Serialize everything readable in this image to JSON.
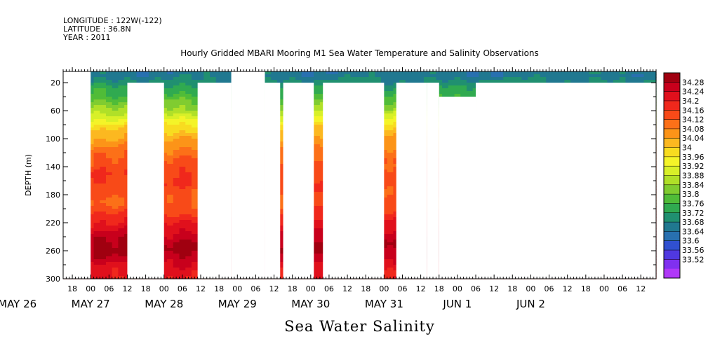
{
  "header": {
    "longitude": "LONGITUDE : 122W(-122)",
    "latitude": "LATITUDE : 36.8N",
    "year": "YEAR : 2011"
  },
  "chart_data": {
    "type": "heatmap",
    "title": "Hourly Gridded MBARI Mooring M1 Sea Water Temperature and Salinity Observations",
    "bottom_title": "Sea Water Salinity",
    "ylabel": "DEPTH (m)",
    "y_ticks": [
      20,
      60,
      100,
      140,
      180,
      220,
      260,
      300
    ],
    "ylim": [
      300,
      4
    ],
    "x_ticks_hours": [
      "18",
      "00",
      "06",
      "12",
      "18",
      "00",
      "06",
      "12",
      "18",
      "00",
      "06",
      "12",
      "18",
      "00",
      "06",
      "12",
      "18",
      "00",
      "06",
      "12",
      "18",
      "00",
      "06",
      "12",
      "18",
      "00",
      "06",
      "12",
      "18",
      "00",
      "06",
      "12"
    ],
    "x_hour_values": [
      -6,
      0,
      6,
      12,
      18,
      24,
      30,
      36,
      42,
      48,
      54,
      60,
      66,
      72,
      78,
      84,
      90,
      96,
      102,
      108,
      114,
      120,
      126,
      132,
      138,
      144,
      150,
      156,
      162,
      168,
      174,
      180
    ],
    "x_day_labels": [
      "MAY 26",
      "MAY 27",
      "MAY 28",
      "MAY 29",
      "MAY 30",
      "MAY 31",
      "JUN  1",
      "JUN  2"
    ],
    "x_day_values": [
      -24,
      0,
      24,
      48,
      72,
      96,
      120,
      144
    ],
    "xlim": [
      -9,
      185
    ],
    "colorbar": {
      "labels": [
        "34.28",
        "34.24",
        "34.2",
        "34.16",
        "34.12",
        "34.08",
        "34.04",
        "34",
        "33.96",
        "33.92",
        "33.88",
        "33.84",
        "33.8",
        "33.76",
        "33.72",
        "33.68",
        "33.64",
        "33.6",
        "33.56",
        "33.52"
      ],
      "colors": [
        "#a00010",
        "#c8001c",
        "#e0101c",
        "#f0281c",
        "#f84a18",
        "#fc7018",
        "#fc9418",
        "#fcb820",
        "#f8dc20",
        "#f4f428",
        "#d8f028",
        "#b0e028",
        "#80cc30",
        "#50bc38",
        "#30aa50",
        "#209070",
        "#207890",
        "#2870b0",
        "#3050d0",
        "#5038e0",
        "#8030f0",
        "#b038f8"
      ]
    },
    "profile": {
      "depth": [
        4,
        10,
        20,
        30,
        40,
        50,
        60,
        70,
        80,
        90,
        100,
        110,
        120,
        130,
        140,
        150,
        160,
        170,
        180,
        190,
        200,
        210,
        220,
        230,
        240,
        250,
        260,
        270,
        280,
        290,
        300
      ],
      "salinity": [
        33.7,
        33.7,
        33.73,
        33.77,
        33.8,
        33.84,
        33.88,
        33.93,
        33.98,
        34.02,
        34.05,
        34.07,
        34.1,
        34.12,
        34.13,
        34.15,
        34.15,
        34.14,
        34.13,
        34.12,
        34.14,
        34.17,
        34.2,
        34.22,
        34.25,
        34.27,
        34.27,
        34.25,
        34.22,
        34.2,
        34.19
      ]
    },
    "gaps": [
      {
        "from": -9,
        "to": 0,
        "below": 4
      },
      {
        "from": 12,
        "to": 24,
        "below": 20
      },
      {
        "from": 12,
        "to": 18,
        "below": 60
      },
      {
        "from": 19,
        "to": 21,
        "below": 60
      },
      {
        "from": 35,
        "to": 46,
        "below": 20
      },
      {
        "from": 46,
        "to": 57,
        "below": 4
      },
      {
        "from": 57,
        "to": 62,
        "below": 20
      },
      {
        "from": 63,
        "to": 73,
        "below": 20
      },
      {
        "from": 63,
        "to": 66,
        "below": 60
      },
      {
        "from": 68,
        "to": 73,
        "below": 60
      },
      {
        "from": 76,
        "to": 88,
        "below": 20
      },
      {
        "from": 79,
        "to": 86,
        "below": 60
      },
      {
        "from": 88,
        "to": 96,
        "below": 20
      },
      {
        "from": 89,
        "to": 92,
        "below": 60
      },
      {
        "from": 93,
        "to": 95,
        "below": 60
      },
      {
        "from": 100,
        "to": 110,
        "below": 20
      },
      {
        "from": 101,
        "to": 108,
        "below": 60
      },
      {
        "from": 110,
        "to": 114,
        "below": 20
      },
      {
        "from": 114,
        "to": 126,
        "below": 40
      },
      {
        "from": 117,
        "to": 120,
        "below": 60
      },
      {
        "from": 121,
        "to": 122,
        "below": 60
      },
      {
        "from": 123,
        "to": 126,
        "below": 40
      },
      {
        "from": 126,
        "to": 185,
        "below": 20
      },
      {
        "from": 126,
        "to": 128,
        "below": 60
      },
      {
        "from": 138,
        "to": 185,
        "below": 80
      },
      {
        "from": 139,
        "to": 148,
        "below": 80
      },
      {
        "from": 151,
        "to": 152,
        "below": 80
      },
      {
        "from": 168,
        "to": 170,
        "below": 80
      },
      {
        "from": 174,
        "to": 176,
        "below": 80
      }
    ]
  }
}
